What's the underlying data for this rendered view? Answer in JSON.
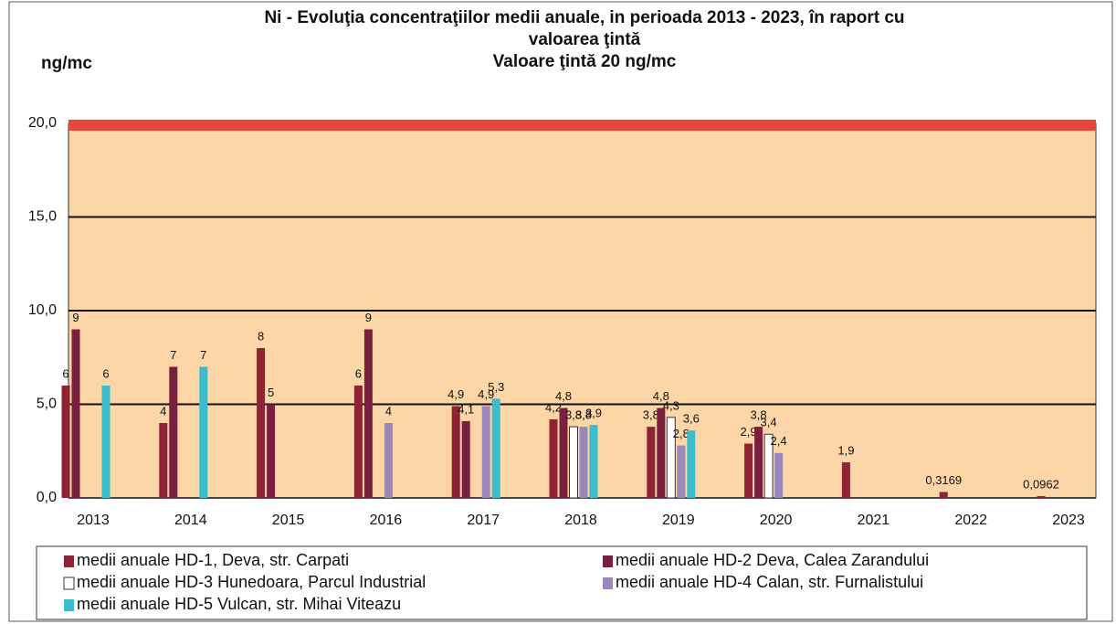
{
  "chart_data": {
    "type": "bar",
    "title": [
      "Ni - Evoluţia concentraţiilor medii anuale, in perioada 2013 - 2023, în raport cu",
      "valoarea ţintă",
      "Valoare ţintă 20 ng/mc"
    ],
    "y_label": "ng/mc",
    "categories": [
      "2013",
      "2014",
      "2015",
      "2016",
      "2017",
      "2018",
      "2019",
      "2020",
      "2021",
      "2022",
      "2023"
    ],
    "series": [
      {
        "name": "medii anuale HD-1, Deva, str. Carpati",
        "color": "#8e2333",
        "values": [
          6,
          4,
          8,
          6,
          4.9,
          4.2,
          3.8,
          2.9,
          1.9,
          0.3169,
          0.0962
        ],
        "value_labels": [
          "6",
          "4",
          "8",
          "6",
          "4,9",
          "4,2",
          "3,8",
          "2,9",
          "1,9",
          "0,3169",
          "0,0962"
        ]
      },
      {
        "name": "medii anuale HD-2 Deva, Calea Zarandului",
        "color": "#7a1f3f",
        "values": [
          9,
          7,
          5,
          9,
          4.1,
          4.8,
          4.8,
          3.8,
          null,
          null,
          null
        ],
        "value_labels": [
          "9",
          "7",
          "5",
          "9",
          "4,1",
          "4,8",
          "4,8",
          "3,8",
          null,
          null,
          null
        ]
      },
      {
        "name": "medii anuale HD-3 Hunedoara, Parcul Industrial",
        "color": "#ffffff",
        "values": [
          null,
          null,
          null,
          null,
          null,
          3.8,
          4.3,
          3.4,
          null,
          null,
          null
        ],
        "value_labels": [
          null,
          null,
          null,
          null,
          null,
          "3,8",
          "4,3",
          "3,4",
          null,
          null,
          null
        ]
      },
      {
        "name": "medii anuale HD-4 Calan, str. Furnalistului",
        "color": "#9b88bb",
        "values": [
          null,
          null,
          null,
          4,
          4.9,
          3.8,
          2.8,
          2.4,
          null,
          null,
          null
        ],
        "value_labels": [
          null,
          null,
          null,
          "4",
          "4,9",
          "3,8",
          "2,8",
          "2,4",
          null,
          null,
          null
        ]
      },
      {
        "name": "medii anuale HD-5 Vulcan, str. Mihai Viteazu",
        "color": "#3dbdcc",
        "values": [
          6,
          7,
          null,
          null,
          5.3,
          3.9,
          3.6,
          null,
          null,
          null,
          null
        ],
        "value_labels": [
          "6",
          "7",
          null,
          null,
          "5,3",
          "3,9",
          "3,6",
          null,
          null,
          null,
          null
        ]
      }
    ],
    "target": 20,
    "target_color": "#e8463c",
    "ylim": [
      0,
      20
    ],
    "yticks": [
      {
        "value": 0,
        "label": "0,0"
      },
      {
        "value": 5,
        "label": "5,0"
      },
      {
        "value": 10,
        "label": "10,0"
      },
      {
        "value": 15,
        "label": "15,0"
      },
      {
        "value": 20,
        "label": "20,0"
      }
    ],
    "grid": true
  }
}
